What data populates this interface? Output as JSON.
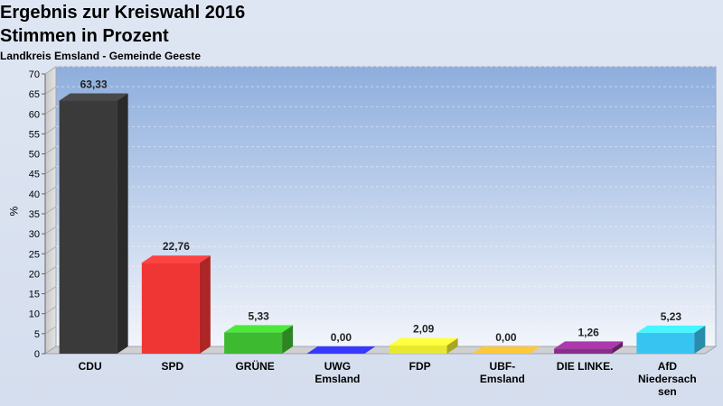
{
  "chart_data": {
    "type": "bar",
    "title": "Ergebnis zur Kreiswahl 2016",
    "subtitle": "Stimmen in Prozent",
    "subsubtitle": "Landkreis Emsland - Gemeinde Geeste",
    "ylabel": "%",
    "ylim": [
      0,
      70
    ],
    "yticks": [
      0,
      5,
      10,
      15,
      20,
      25,
      30,
      35,
      40,
      45,
      50,
      55,
      60,
      65,
      70
    ],
    "grid": true,
    "categories": [
      "CDU",
      "SPD",
      "GRÜNE",
      "UWG\nEmsland",
      "FDP",
      "UBF-\nEmsland",
      "DIE LINKE.",
      "AfD\nNiedersach\nsen"
    ],
    "values": [
      63.33,
      22.76,
      5.33,
      0.0,
      2.09,
      0.0,
      1.26,
      5.23
    ],
    "value_labels": [
      "63,33",
      "22,76",
      "5,33",
      "0,00",
      "2,09",
      "0,00",
      "1,26",
      "5,23"
    ],
    "colors": [
      "#3a3a3a",
      "#f03535",
      "#3dba2f",
      "#2d2de8",
      "#e8e830",
      "#f0a030",
      "#8a2d8a",
      "#38c4f0"
    ]
  }
}
